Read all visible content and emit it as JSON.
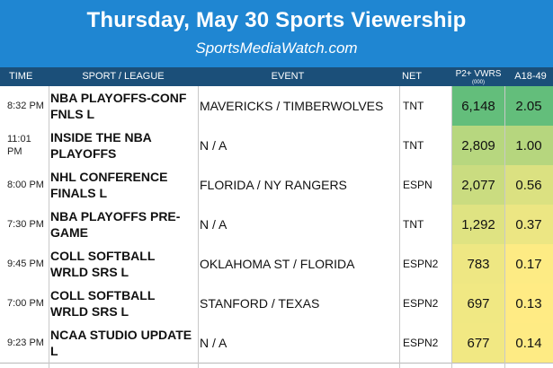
{
  "title": "Thursday, May 30 Sports Viewership",
  "site": "SportsMediaWatch.com",
  "columns": {
    "time": "TIME",
    "sport": "SPORT / LEAGUE",
    "event": "EVENT",
    "net": "NET",
    "p2": "P2+ VWRS",
    "p2_unit": "(000)",
    "a18": "A18-49"
  },
  "colors": {
    "banner": "#1f86d2",
    "header": "#1b4f79",
    "high": "#63be7b",
    "low": "#ffeb84"
  },
  "rows": [
    {
      "time": "8:32 PM",
      "sport": "NBA PLAYOFFS-CONF FNLS L",
      "event": "MAVERICKS / TIMBERWOLVES",
      "net": "TNT",
      "p2": "6,148",
      "a18": "2.05",
      "p2_bg": "#63be7b",
      "a18_bg": "#63be7b"
    },
    {
      "time": "11:01 PM",
      "sport": "INSIDE THE NBA PLAYOFFS",
      "event": "N / A",
      "net": "TNT",
      "p2": "2,809",
      "a18": "1.00",
      "p2_bg": "#b7d77f",
      "a18_bg": "#b6d67e"
    },
    {
      "time": "8:00 PM",
      "sport": "NHL CONFERENCE FINALS  L",
      "event": "FLORIDA / NY RANGERS",
      "net": "ESPN",
      "p2": "2,077",
      "a18": "0.56",
      "p2_bg": "#cadc80",
      "a18_bg": "#dbe181"
    },
    {
      "time": "7:30 PM",
      "sport": "NBA PLAYOFFS PRE-GAME",
      "event": "N / A",
      "net": "TNT",
      "p2": "1,292",
      "a18": "0.37",
      "p2_bg": "#dfe382",
      "a18_bg": "#ece683"
    },
    {
      "time": "9:45 PM",
      "sport": "COLL SOFTBALL WRLD SRS  L",
      "event": "OKLAHOMA ST / FLORIDA",
      "net": "ESPN2",
      "p2": "783",
      "a18": "0.17",
      "p2_bg": "#eee783",
      "a18_bg": "#fdeb84"
    },
    {
      "time": "7:00 PM",
      "sport": "COLL SOFTBALL WRLD SRS  L",
      "event": "STANFORD / TEXAS",
      "net": "ESPN2",
      "p2": "697",
      "a18": "0.13",
      "p2_bg": "#f0e883",
      "a18_bg": "#ffeb84"
    },
    {
      "time": "9:23 PM",
      "sport": "NCAA STUDIO UPDATE  L",
      "event": "N / A",
      "net": "ESPN2",
      "p2": "677",
      "a18": "0.14",
      "p2_bg": "#f1e883",
      "a18_bg": "#feeb84"
    }
  ]
}
